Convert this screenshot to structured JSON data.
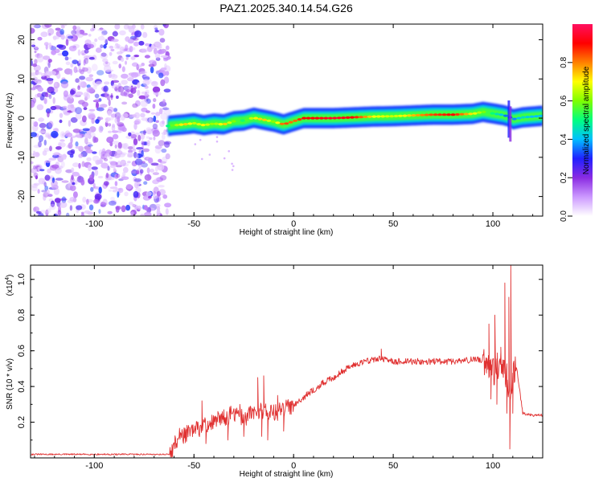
{
  "title": "PAZ1.2025.340.14.54.G26",
  "chart_data": [
    {
      "type": "heatmap",
      "id": "spectrogram",
      "xlabel": "Height of straight line (km)",
      "ylabel": "Frequency (Hz)",
      "xlim": [
        -132,
        125
      ],
      "ylim": [
        -25,
        24
      ],
      "xticks": [
        -100,
        -50,
        0,
        50,
        100
      ],
      "yticks": [
        -20,
        -10,
        0,
        10,
        20
      ],
      "noise_region_x": [
        -132,
        -63
      ],
      "ridge": {
        "x": [
          -63,
          -60,
          -55,
          -50,
          -45,
          -40,
          -35,
          -30,
          -25,
          -20,
          -15,
          -10,
          -5,
          0,
          5,
          10,
          20,
          30,
          40,
          50,
          60,
          70,
          80,
          90,
          95,
          100,
          105,
          108,
          110,
          115,
          120,
          125
        ],
        "freq": [
          -2,
          -1.8,
          -1.6,
          -1.3,
          -1.8,
          -1.4,
          -1.6,
          -0.8,
          -0.6,
          0.1,
          -0.4,
          -0.9,
          -1.6,
          -0.8,
          0,
          0,
          0,
          0.2,
          0.4,
          0.5,
          0.7,
          0.9,
          0.9,
          1.1,
          1.6,
          1.2,
          0.8,
          0.4,
          -0.3,
          0.2,
          0.4,
          0.6
        ],
        "amplitude": [
          0.5,
          0.6,
          0.75,
          0.65,
          0.7,
          0.6,
          0.75,
          0.6,
          0.5,
          0.7,
          0.75,
          0.6,
          0.85,
          0.8,
          0.9,
          0.9,
          0.95,
          0.9,
          0.7,
          0.65,
          0.75,
          0.85,
          0.9,
          0.7,
          0.6,
          0.5,
          0.4,
          0.3,
          0.35,
          0.45,
          0.4,
          0.4
        ]
      },
      "colorbar": {
        "label": "Normalized spectral amplitude",
        "range": [
          0.0,
          1.0
        ],
        "ticks": [
          0.0,
          0.2,
          0.4,
          0.6,
          0.8
        ],
        "tick_labels": [
          "0.0",
          "0.2",
          "0.4",
          "0.6",
          "0.8"
        ],
        "colors": [
          "#ffffff",
          "#cc99ff",
          "#8a2be2",
          "#2020ff",
          "#00bfff",
          "#00ff80",
          "#80ff00",
          "#ffff00",
          "#ff8000",
          "#ff0000",
          "#ff1060"
        ]
      }
    },
    {
      "type": "line",
      "id": "snr",
      "xlabel": "Height of straight line (km)",
      "ylabel": "SNR (10 * v/v)",
      "scale_note": "(x10",
      "scale_exp": "4",
      "scale_close": ")",
      "xlim": [
        -132,
        125
      ],
      "ylim": [
        0.0,
        1.08
      ],
      "xticks": [
        -100,
        -50,
        0,
        50,
        100
      ],
      "yticks": [
        0.2,
        0.4,
        0.6,
        0.8,
        1.0
      ],
      "ytick_labels": [
        "0.2",
        "0.4",
        "0.6",
        "0.8",
        "1.0"
      ],
      "color": "#e03030",
      "x": [
        -132,
        -120,
        -100,
        -80,
        -62,
        -60,
        -58,
        -55,
        -50,
        -45,
        -40,
        -35,
        -30,
        -25,
        -20,
        -15,
        -10,
        -5,
        0,
        5,
        10,
        15,
        20,
        25,
        30,
        35,
        40,
        44,
        45,
        50,
        60,
        70,
        80,
        90,
        95,
        98,
        100,
        103,
        106,
        108,
        109,
        110,
        112,
        115,
        120,
        125
      ],
      "y": [
        0.02,
        0.02,
        0.02,
        0.02,
        0.02,
        0.06,
        0.12,
        0.13,
        0.15,
        0.18,
        0.2,
        0.22,
        0.25,
        0.22,
        0.26,
        0.27,
        0.25,
        0.27,
        0.3,
        0.34,
        0.38,
        0.42,
        0.45,
        0.49,
        0.52,
        0.54,
        0.55,
        0.56,
        0.55,
        0.54,
        0.54,
        0.54,
        0.54,
        0.55,
        0.55,
        0.52,
        0.48,
        0.52,
        0.5,
        0.4,
        0.35,
        0.5,
        0.5,
        0.25,
        0.24,
        0.24
      ],
      "spikes": [
        {
          "x": -46,
          "y": 0.32
        },
        {
          "x": -44,
          "y": 0.08
        },
        {
          "x": -38,
          "y": 0.26
        },
        {
          "x": -35,
          "y": 0.27
        },
        {
          "x": -33,
          "y": 0.1
        },
        {
          "x": -27,
          "y": 0.3
        },
        {
          "x": -25,
          "y": 0.12
        },
        {
          "x": -18,
          "y": 0.45
        },
        {
          "x": -16,
          "y": 0.12
        },
        {
          "x": -15,
          "y": 0.46
        },
        {
          "x": -13,
          "y": 0.1
        },
        {
          "x": -8,
          "y": 0.35
        },
        {
          "x": -5,
          "y": 0.15
        },
        {
          "x": 44,
          "y": 0.61
        },
        {
          "x": 98,
          "y": 0.75
        },
        {
          "x": 99,
          "y": 0.33
        },
        {
          "x": 101,
          "y": 0.8
        },
        {
          "x": 102,
          "y": 0.3
        },
        {
          "x": 104,
          "y": 0.62
        },
        {
          "x": 106,
          "y": 0.98
        },
        {
          "x": 107,
          "y": 0.25
        },
        {
          "x": 108,
          "y": 0.9
        },
        {
          "x": 108.5,
          "y": 0.05
        },
        {
          "x": 109,
          "y": 1.08
        },
        {
          "x": 110,
          "y": 0.25
        }
      ]
    }
  ]
}
